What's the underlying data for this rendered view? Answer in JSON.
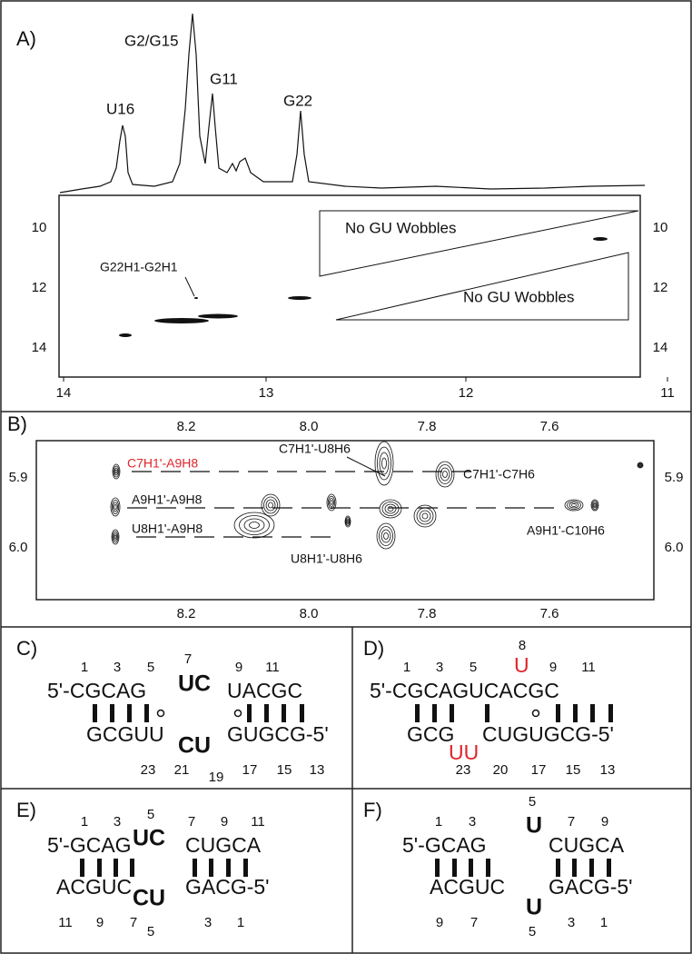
{
  "panel_a": {
    "label": "A)",
    "peaks": [
      "U16",
      "G2/G15",
      "G11",
      "G22"
    ],
    "annotations": [
      "G22H1-G2H1",
      "No GU Wobbles",
      "No GU Wobbles"
    ],
    "x_ticks": [
      "14",
      "13",
      "12",
      "11"
    ],
    "y_ticks_left": [
      "10",
      "12",
      "14"
    ],
    "y_ticks_right": [
      "10",
      "12",
      "14"
    ]
  },
  "panel_b": {
    "label": "B)",
    "x_ticks_top": [
      "8.2",
      "8.0",
      "7.8",
      "7.6"
    ],
    "x_ticks_bottom": [
      "8.2",
      "8.0",
      "7.8",
      "7.6"
    ],
    "y_ticks_left": [
      "5.9",
      "6.0"
    ],
    "y_ticks_right": [
      "5.9",
      "6.0"
    ],
    "annotations": [
      "C7H1'-A9H8",
      "A9H1'-A9H8",
      "U8H1'-A9H8",
      "C7H1'-U8H6",
      "C7H1'-C7H6",
      "A9H1'-C10H6",
      "U8H1'-U8H6"
    ]
  },
  "panel_c": {
    "label": "C)",
    "top_numbers": [
      "1",
      "3",
      "5",
      "7",
      "9",
      "11"
    ],
    "top_strand": [
      "5'-CGCAG",
      "UC",
      "UACGC"
    ],
    "bottom_strand": [
      "GCGUU",
      "CU",
      "GUGCG-5'"
    ],
    "bottom_numbers": [
      "23",
      "21",
      "19",
      "17",
      "15",
      "13"
    ]
  },
  "panel_d": {
    "label": "D)",
    "top_numbers": [
      "1",
      "3",
      "5",
      "8",
      "9",
      "11"
    ],
    "top_strand": [
      "5'-CGCAGUCACGC",
      "U"
    ],
    "bottom_strand": [
      "GCG",
      "CUGUGCG-5'",
      "UU"
    ],
    "bottom_numbers": [
      "23",
      "20",
      "17",
      "15",
      "13"
    ]
  },
  "panel_e": {
    "label": "E)",
    "top_numbers": [
      "1",
      "3",
      "5",
      "7",
      "9",
      "11"
    ],
    "top_strand": [
      "5'-GCAG",
      "UC",
      "CUGCA"
    ],
    "bottom_strand": [
      "ACGUC",
      "CU",
      "GACG-5'"
    ],
    "bottom_numbers": [
      "11",
      "9",
      "7",
      "5",
      "3",
      "1"
    ]
  },
  "panel_f": {
    "label": "F)",
    "top_numbers": [
      "1",
      "3",
      "5",
      "7",
      "9"
    ],
    "top_strand": [
      "5'-GCAG",
      "U",
      "CUGCA"
    ],
    "bottom_strand": [
      "ACGUC",
      "U",
      "GACG-5'"
    ],
    "bottom_numbers": [
      "9",
      "7",
      "5",
      "3",
      "1"
    ]
  }
}
